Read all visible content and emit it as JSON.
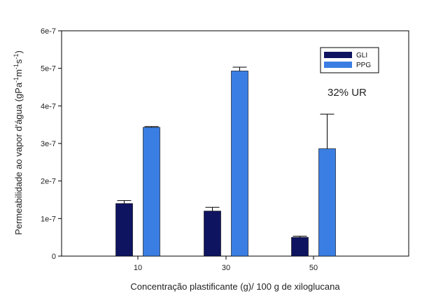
{
  "chart_data": {
    "type": "bar",
    "categories": [
      "10",
      "30",
      "50"
    ],
    "series": [
      {
        "name": "GLI",
        "color": "#0f1461",
        "values": [
          1.4e-07,
          1.2e-07,
          5e-08
        ],
        "errors": [
          8e-09,
          1e-08,
          3e-09
        ]
      },
      {
        "name": "PPG",
        "color": "#3b7ee3",
        "values": [
          3.43e-07,
          4.93e-07,
          2.86e-07
        ],
        "errors": [
          2e-09,
          1e-08,
          9.2e-08
        ]
      }
    ],
    "xlabel": "Concentração plastificante (g)/ 100 g de xiloglucana",
    "ylabel_main": "Permeabilidade ao vapor d'água (gPa",
    "ylabel_sup1": "-1",
    "ylabel_mid1": "m",
    "ylabel_sup2": "-1",
    "ylabel_mid2": "s",
    "ylabel_sup3": "-1",
    "ylabel_end": ")",
    "ylim": [
      0,
      6e-07
    ],
    "yticks": [
      {
        "value": 0,
        "label": "0"
      },
      {
        "value": 1e-07,
        "label": "1e-7"
      },
      {
        "value": 2e-07,
        "label": "2e-7"
      },
      {
        "value": 3e-07,
        "label": "3e-7"
      },
      {
        "value": 4e-07,
        "label": "4e-7"
      },
      {
        "value": 5e-07,
        "label": "5e-7"
      },
      {
        "value": 6e-07,
        "label": "6e-7"
      }
    ],
    "annotation": "32% UR",
    "legend_position": "top-right",
    "grid": false
  }
}
